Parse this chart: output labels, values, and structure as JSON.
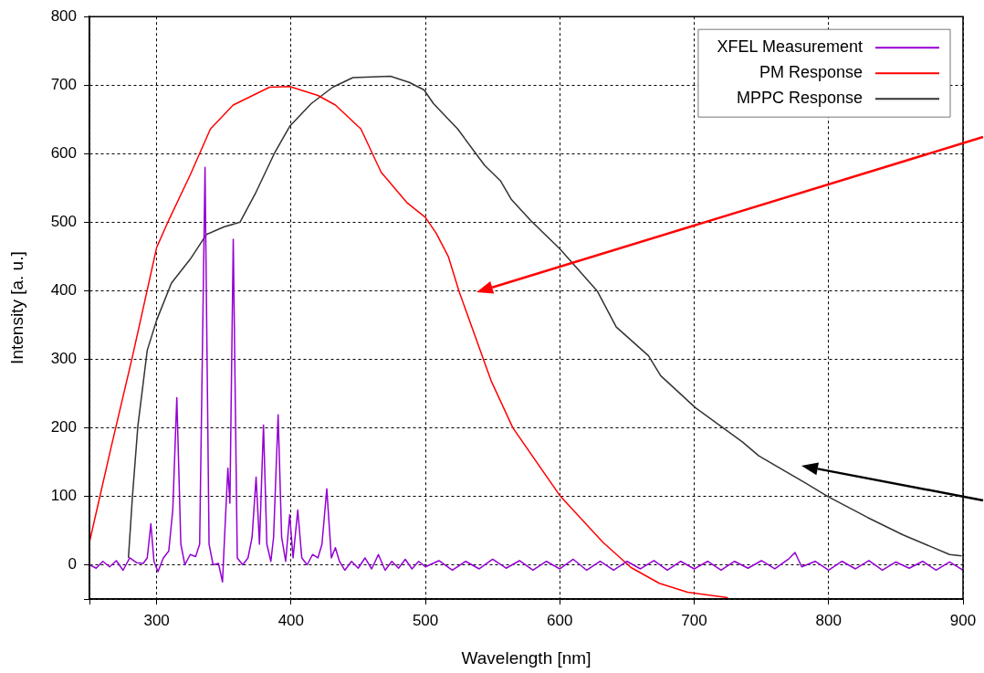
{
  "chart_data": {
    "type": "line",
    "xlabel": "Wavelength [nm]",
    "ylabel": "Intensity [a. u.]",
    "xlim": [
      250,
      900
    ],
    "xticks": [
      {
        "value": 250,
        "label": null
      },
      300,
      400,
      500,
      600,
      700,
      800,
      900
    ],
    "ylim": [
      -50,
      800
    ],
    "yticks": [
      {
        "value": -50,
        "label": null
      },
      0,
      100,
      200,
      300,
      400,
      500,
      600,
      700,
      800
    ],
    "grid": true,
    "legend": "top right",
    "marker": "none",
    "line_style": "solid",
    "series": [
      {
        "name": "XFEL Measurement",
        "color": "#9400d3",
        "x": [
          250,
          255,
          260,
          265,
          270,
          275,
          280,
          285,
          290,
          293,
          295.7,
          298,
          301,
          305,
          309,
          312,
          315,
          318,
          321,
          325,
          329,
          332,
          336,
          339,
          342,
          346,
          349,
          351,
          353,
          354.5,
          357,
          360,
          364,
          368,
          371,
          374,
          376.5,
          379.5,
          382,
          385,
          387,
          390.4,
          393,
          396,
          399,
          401.5,
          405,
          408,
          412,
          416,
          420,
          423,
          426.6,
          430,
          433,
          436,
          440,
          445,
          450,
          455,
          460,
          465,
          470,
          475,
          480,
          485,
          490,
          495,
          500,
          510,
          520,
          530,
          540,
          550,
          560,
          570,
          580,
          590,
          600,
          610,
          620,
          630,
          640,
          650,
          660,
          670,
          680,
          690,
          700,
          710,
          720,
          730,
          740,
          750,
          760,
          770,
          775,
          780,
          790,
          800,
          810,
          820,
          830,
          840,
          850,
          860,
          870,
          880,
          890,
          900
        ],
        "values": [
          0,
          -5,
          5,
          -3,
          6,
          -8,
          10,
          3,
          2,
          10,
          60,
          5,
          -10,
          10,
          20,
          80,
          244,
          30,
          0,
          15,
          12,
          30,
          580,
          30,
          0,
          2,
          -25,
          60,
          141,
          90,
          475,
          10,
          0,
          10,
          40,
          128,
          30,
          204,
          30,
          5,
          40,
          219,
          40,
          5,
          73,
          10,
          80,
          10,
          0,
          15,
          10,
          30,
          111,
          10,
          25,
          5,
          -8,
          5,
          -5,
          10,
          -6,
          15,
          -8,
          5,
          -5,
          8,
          -6,
          5,
          -3,
          6,
          -8,
          5,
          -6,
          8,
          -5,
          6,
          -8,
          5,
          -6,
          8,
          -8,
          5,
          -8,
          5,
          -6,
          6,
          -8,
          5,
          -6,
          5,
          -8,
          5,
          -5,
          6,
          -6,
          8,
          18,
          -3,
          5,
          -8,
          5,
          -6,
          6,
          -8,
          4,
          -5,
          5,
          -8,
          4,
          -8
        ]
      },
      {
        "name": "PM Response",
        "color": "#ff0000",
        "x": [
          250,
          265.6,
          282,
          300,
          309,
          325,
          340,
          357,
          384,
          399,
          420,
          433,
          452,
          467,
          486,
          500,
          508,
          517,
          525,
          549,
          565,
          600,
          632,
          653,
          674,
          695,
          725
        ],
        "values": [
          33,
          167,
          304,
          463,
          503,
          569,
          636,
          671,
          697,
          698,
          685,
          671,
          636,
          573,
          529,
          507,
          484,
          450,
          399,
          268,
          200,
          101,
          33,
          -4,
          -27,
          -40,
          -48
        ]
      },
      {
        "name": "MPPC Response",
        "color": "#333333",
        "x": [
          279,
          282,
          286,
          293,
          300,
          311,
          325,
          337,
          350,
          362,
          374,
          388,
          399,
          415,
          431,
          446,
          474,
          488,
          499,
          506,
          524,
          544,
          556,
          564,
          578,
          600,
          628,
          642,
          666,
          675,
          701,
          736,
          748,
          783,
          799,
          829,
          855,
          890,
          899
        ],
        "values": [
          10,
          100,
          202,
          313,
          357,
          411,
          446,
          482,
          493,
          500,
          544,
          602,
          640,
          673,
          697,
          711,
          713,
          704,
          693,
          673,
          636,
          583,
          560,
          533,
          503,
          461,
          399,
          347,
          305,
          276,
          229,
          179,
          159,
          119,
          100,
          69,
          44,
          15,
          13
        ]
      }
    ]
  }
}
